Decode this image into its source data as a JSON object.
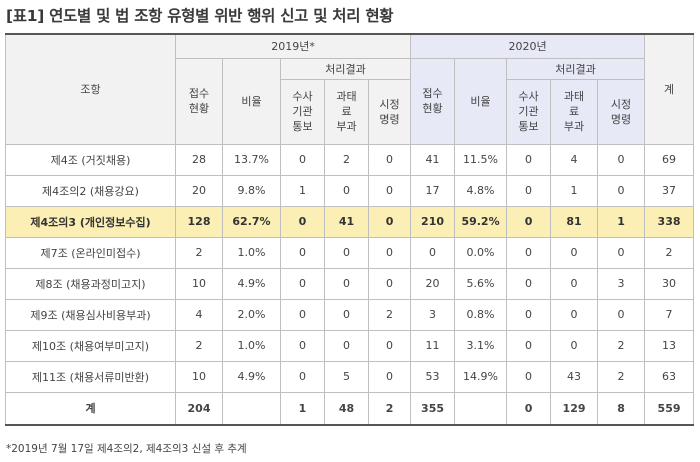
{
  "title": "[표1] 연도별 및 법 조항 유형별 위반 행위 신고 및 처리 현황",
  "header": {
    "article": "조항",
    "year1": "2019년*",
    "year2": "2020년",
    "result": "처리결과",
    "total": "계",
    "col_received": "접수\n현황",
    "col_ratio": "비율",
    "col_notify": "수사\n기관\n통보",
    "col_fine": "과태\n료\n부과",
    "col_order": "시정\n명령"
  },
  "rows": [
    {
      "name": "제4조 (거짓채용)",
      "y1": [
        "28",
        "13.7%",
        "0",
        "2",
        "0"
      ],
      "y2": [
        "41",
        "11.5%",
        "0",
        "4",
        "0"
      ],
      "total": "69"
    },
    {
      "name": "제4조의2 (채용강요)",
      "y1": [
        "20",
        "9.8%",
        "1",
        "0",
        "0"
      ],
      "y2": [
        "17",
        "4.8%",
        "0",
        "1",
        "0"
      ],
      "total": "37"
    },
    {
      "name": "제4조의3 (개인정보수집)",
      "y1": [
        "128",
        "62.7%",
        "0",
        "41",
        "0"
      ],
      "y2": [
        "210",
        "59.2%",
        "0",
        "81",
        "1"
      ],
      "total": "338"
    },
    {
      "name": "제7조 (온라인미접수)",
      "y1": [
        "2",
        "1.0%",
        "0",
        "0",
        "0"
      ],
      "y2": [
        "0",
        "0.0%",
        "0",
        "0",
        "0"
      ],
      "total": "2"
    },
    {
      "name": "제8조 (채용과정미고지)",
      "y1": [
        "10",
        "4.9%",
        "0",
        "0",
        "0"
      ],
      "y2": [
        "20",
        "5.6%",
        "0",
        "0",
        "3"
      ],
      "total": "30"
    },
    {
      "name": "제9조 (채용심사비용부과)",
      "y1": [
        "4",
        "2.0%",
        "0",
        "0",
        "2"
      ],
      "y2": [
        "3",
        "0.8%",
        "0",
        "0",
        "0"
      ],
      "total": "7"
    },
    {
      "name": "제10조 (채용여부미고지)",
      "y1": [
        "2",
        "1.0%",
        "0",
        "0",
        "0"
      ],
      "y2": [
        "11",
        "3.1%",
        "0",
        "0",
        "2"
      ],
      "total": "13"
    },
    {
      "name": "제11조 (채용서류미반환)",
      "y1": [
        "10",
        "4.9%",
        "0",
        "5",
        "0"
      ],
      "y2": [
        "53",
        "14.9%",
        "0",
        "43",
        "2"
      ],
      "total": "63"
    }
  ],
  "total_row": {
    "name": "계",
    "y1": [
      "204",
      "",
      "1",
      "48",
      "2"
    ],
    "y2": [
      "355",
      "",
      "0",
      "129",
      "8"
    ],
    "total": "559"
  },
  "footnote": "*2019년 7월 17일 제4조의2, 제4조의3 신설 후 추계"
}
